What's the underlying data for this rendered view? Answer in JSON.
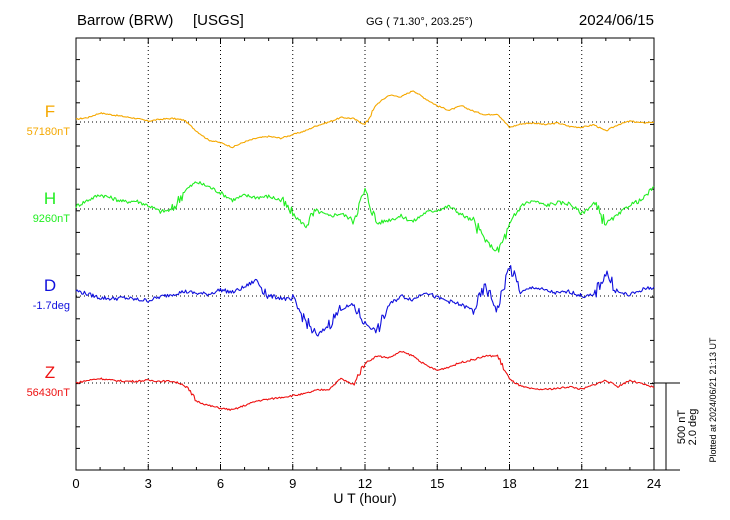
{
  "header": {
    "station": "Barrow (BRW)",
    "source": "[USGS]",
    "coords": "GG ( 71.30°, 203.25°)",
    "date": "2024/06/15"
  },
  "footer": {
    "plotted_note": "Plotted at 2024/06/21 21:13 UT"
  },
  "chart_data": {
    "type": "line",
    "xlabel": "U T (hour)",
    "xlim": [
      0,
      24
    ],
    "xticks": [
      "0",
      "3",
      "6",
      "9",
      "12",
      "15",
      "18",
      "21",
      "24"
    ],
    "grid": true,
    "scale_bar": {
      "label1": "500 nT",
      "label2": "2.0 deg"
    },
    "series": [
      {
        "name": "F",
        "baseline_label": "57180nT",
        "color": "#f5a800",
        "x": [
          0,
          0.5,
          1,
          1.5,
          2,
          2.5,
          3,
          3.5,
          4,
          4.5,
          5,
          5.5,
          6,
          6.5,
          7,
          7.5,
          8,
          8.5,
          9,
          9.5,
          10,
          10.5,
          11,
          11.5,
          12,
          12.5,
          13,
          13.5,
          14,
          14.5,
          15,
          15.5,
          16,
          16.5,
          17,
          17.5,
          18,
          18.5,
          19,
          19.5,
          20,
          20.5,
          21,
          21.5,
          22,
          22.5,
          23,
          23.5,
          24
        ],
        "y": [
          0.3,
          0.5,
          1.0,
          0.8,
          0.6,
          0.4,
          0.1,
          0.3,
          0.4,
          0.2,
          -1.0,
          -2.0,
          -2.3,
          -2.8,
          -2.2,
          -1.8,
          -1.6,
          -1.8,
          -1.4,
          -1.0,
          -0.4,
          0.0,
          0.5,
          0.4,
          -0.3,
          2.0,
          3.0,
          2.8,
          3.5,
          2.6,
          1.8,
          1.3,
          1.8,
          1.2,
          0.8,
          0.9,
          -0.6,
          -0.2,
          -0.1,
          -0.3,
          -0.1,
          -0.5,
          -0.6,
          -0.3,
          -1.0,
          -0.3,
          0.1,
          -0.1,
          0.0
        ]
      },
      {
        "name": "H",
        "baseline_label": "9260nT",
        "color": "#22ee22",
        "x": [
          0,
          0.5,
          1,
          1.5,
          2,
          2.5,
          3,
          3.5,
          4,
          4.5,
          5,
          5.5,
          6,
          6.5,
          7,
          7.5,
          8,
          8.5,
          9,
          9.5,
          10,
          10.5,
          11,
          11.5,
          12,
          12.5,
          13,
          13.5,
          14,
          14.5,
          15,
          15.5,
          16,
          16.5,
          17,
          17.5,
          18,
          18.5,
          19,
          19.5,
          20,
          20.5,
          21,
          21.5,
          22,
          22.5,
          23,
          23.5,
          24
        ],
        "y": [
          0.3,
          1.0,
          1.6,
          1.2,
          0.8,
          0.9,
          0.4,
          -0.3,
          -0.1,
          2.0,
          3.0,
          2.5,
          1.8,
          1.0,
          1.5,
          1.3,
          1.4,
          1.0,
          -0.6,
          -1.8,
          -0.2,
          -0.8,
          -0.5,
          -1.2,
          2.0,
          -1.6,
          -1.2,
          -0.8,
          -1.4,
          -0.4,
          -0.1,
          0.3,
          -0.6,
          -1.4,
          -3.5,
          -4.8,
          -2.0,
          0.5,
          0.9,
          0.4,
          0.7,
          0.6,
          -0.5,
          0.6,
          -1.6,
          -0.7,
          0.5,
          1.0,
          2.5
        ]
      },
      {
        "name": "D",
        "baseline_label": "-1.7deg",
        "color": "#1010dd",
        "x": [
          0,
          0.5,
          1,
          1.5,
          2,
          2.5,
          3,
          3.5,
          4,
          4.5,
          5,
          5.5,
          6,
          6.5,
          7,
          7.5,
          8,
          8.5,
          9,
          9.5,
          10,
          10.5,
          11,
          11.5,
          12,
          12.5,
          13,
          13.5,
          14,
          14.5,
          15,
          15.5,
          16,
          16.5,
          17,
          17.5,
          18,
          18.5,
          19,
          19.5,
          20,
          20.5,
          21,
          21.5,
          22,
          22.5,
          23,
          23.5,
          24
        ],
        "y": [
          0.6,
          0.2,
          -0.2,
          -0.3,
          -0.2,
          -0.4,
          -0.5,
          -0.1,
          0.2,
          0.5,
          0.3,
          0.2,
          0.7,
          0.4,
          1.0,
          1.8,
          0.0,
          -0.2,
          -0.5,
          -2.6,
          -4.5,
          -3.2,
          -1.4,
          -1.0,
          -3.0,
          -4.0,
          -1.0,
          0.0,
          -0.4,
          0.5,
          -0.2,
          -0.6,
          -1.0,
          -1.6,
          1.0,
          -1.5,
          3.3,
          0.4,
          1.0,
          0.6,
          0.3,
          0.5,
          0.0,
          0.0,
          2.6,
          0.4,
          0.1,
          0.7,
          1.0
        ]
      },
      {
        "name": "Z",
        "baseline_label": "56430nT",
        "color": "#ee1111",
        "x": [
          0,
          0.5,
          1,
          1.5,
          2,
          2.5,
          3,
          3.5,
          4,
          4.5,
          5,
          5.5,
          6,
          6.5,
          7,
          7.5,
          8,
          8.5,
          9,
          9.5,
          10,
          10.5,
          11,
          11.5,
          12,
          12.5,
          13,
          13.5,
          14,
          14.5,
          15,
          15.5,
          16,
          16.5,
          17,
          17.5,
          18,
          18.5,
          19,
          19.5,
          20,
          20.5,
          21,
          21.5,
          22,
          22.5,
          23,
          23.5,
          24
        ],
        "y": [
          0.0,
          0.3,
          0.5,
          0.3,
          0.2,
          0.2,
          0.3,
          0.2,
          0.2,
          -0.2,
          -2.0,
          -2.5,
          -2.8,
          -3.0,
          -2.5,
          -2.0,
          -1.8,
          -1.6,
          -1.4,
          -1.2,
          -0.8,
          -0.7,
          0.5,
          -0.2,
          2.2,
          3.0,
          2.8,
          3.5,
          3.0,
          2.0,
          1.4,
          1.8,
          2.3,
          2.6,
          3.0,
          3.0,
          0.4,
          -0.4,
          -0.7,
          -0.7,
          -0.6,
          -0.4,
          -0.7,
          -0.2,
          0.3,
          -0.4,
          0.3,
          -0.1,
          -0.5
        ]
      }
    ]
  }
}
